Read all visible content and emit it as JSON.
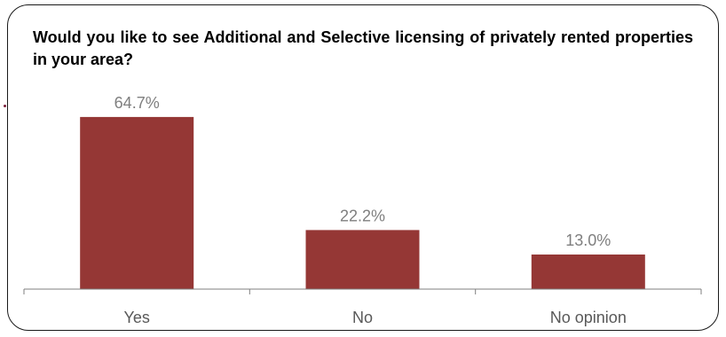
{
  "chart_data": {
    "type": "bar",
    "title": "Would you like to see Additional and Selective licensing of privately rented properties in your area?",
    "categories": [
      "Yes",
      "No",
      "No opinion"
    ],
    "values": [
      64.7,
      22.2,
      13.0
    ],
    "data_labels": [
      "64.7%",
      "22.2%",
      "13.0%"
    ],
    "xlabel": "",
    "ylabel": "",
    "ylim": [
      0,
      70
    ],
    "grid": false,
    "legend": "none",
    "colors": {
      "bar": "#953735",
      "data_label": "#7f7f7f",
      "tick_label": "#595959",
      "axis": "#7f7f7f",
      "frame": "#1a1a1a"
    }
  }
}
